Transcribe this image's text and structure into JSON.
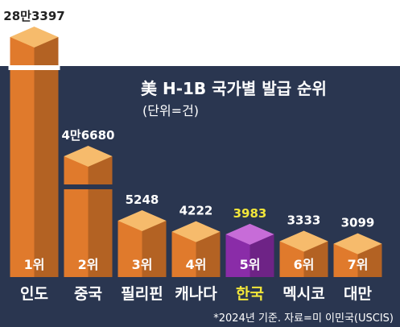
{
  "chart_data": {
    "type": "bar",
    "title": "美 H-1B 국가별 발급 순위",
    "subtitle": "(단위=건)",
    "categories": [
      "인도",
      "중국",
      "필리핀",
      "캐나다",
      "한국",
      "멕시코",
      "대만"
    ],
    "values": [
      283397,
      46680,
      5248,
      4222,
      3983,
      3333,
      3099
    ],
    "value_labels": [
      "28만3397",
      "4만6680",
      "5248",
      "4222",
      "3983",
      "3333",
      "3099"
    ],
    "rank_labels": [
      "1위",
      "2위",
      "3위",
      "4위",
      "5위",
      "6위",
      "7위"
    ],
    "highlight_index": 4,
    "axis_break": true,
    "note": "*2024년 기준. 자료=미 이민국(USCIS)"
  },
  "colors": {
    "background": "#2a3650",
    "bar_face": "#e07a2c",
    "bar_top": "#f6bb6c",
    "highlight_face": "#8a2ca8",
    "highlight_top": "#c76cd8",
    "highlight_text": "#f2e63a",
    "text": "#ffffff"
  }
}
